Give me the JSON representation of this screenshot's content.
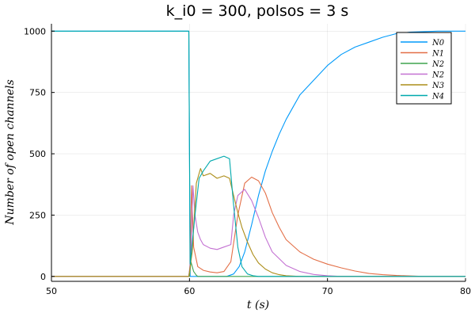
{
  "chart_data": {
    "type": "line",
    "title": "k_i0 = 300, polsos = 3 s",
    "xlabel": "t (s)",
    "ylabel": "Number of open channels",
    "xlim": [
      50,
      80
    ],
    "ylim": [
      -20,
      1030
    ],
    "x_ticks": [
      50,
      60,
      70,
      80
    ],
    "y_ticks": [
      0,
      250,
      500,
      750,
      1000
    ],
    "grid": true,
    "legend_position": "top-right",
    "colors": [
      "#009AFA",
      "#E36F47",
      "#3EA44E",
      "#C371D2",
      "#AC8D18",
      "#00A9AD"
    ],
    "series": [
      {
        "name": "N0",
        "color": "#009AFA",
        "x": [
          50,
          59.95,
          60.05,
          60.5,
          61,
          62,
          62.7,
          63.2,
          63.6,
          64.0,
          64.5,
          65,
          65.5,
          66,
          66.5,
          67,
          67.5,
          68,
          69,
          70,
          71,
          72,
          73,
          74,
          75,
          76,
          77,
          78,
          80
        ],
        "y": [
          1000,
          1000,
          0,
          0,
          0,
          0,
          0,
          10,
          40,
          100,
          210,
          330,
          430,
          510,
          580,
          640,
          690,
          740,
          800,
          860,
          905,
          935,
          955,
          975,
          990,
          996,
          998,
          1000,
          1000
        ]
      },
      {
        "name": "N1",
        "color": "#E36F47",
        "x": [
          50,
          59.95,
          60.05,
          60.15,
          60.3,
          60.6,
          61,
          61.5,
          62,
          62.5,
          63,
          63.5,
          64,
          64.5,
          65,
          65.5,
          66,
          66.5,
          67,
          68,
          69,
          70,
          71,
          72,
          73,
          74,
          75,
          76,
          77,
          80
        ],
        "y": [
          0,
          0,
          40,
          370,
          120,
          40,
          25,
          18,
          15,
          20,
          60,
          250,
          380,
          405,
          390,
          340,
          260,
          200,
          150,
          100,
          70,
          50,
          35,
          22,
          12,
          7,
          4,
          2,
          0,
          0
        ]
      },
      {
        "name": "N2",
        "color": "#3EA44E",
        "x": [
          50,
          60.0,
          60.1,
          60.3,
          60.5,
          60.6,
          61,
          80
        ],
        "y": [
          0,
          0,
          60,
          20,
          5,
          0,
          0,
          0
        ]
      },
      {
        "name": "N2",
        "color": "#C371D2",
        "x": [
          50,
          59.95,
          60.1,
          60.25,
          60.4,
          60.6,
          60.8,
          61,
          61.5,
          62,
          62.5,
          63.0,
          63.2,
          63.5,
          64,
          64.5,
          65,
          65.5,
          66,
          67,
          68,
          69,
          70,
          71,
          80
        ],
        "y": [
          0,
          0,
          80,
          370,
          250,
          180,
          150,
          130,
          115,
          110,
          120,
          130,
          250,
          330,
          355,
          310,
          240,
          160,
          100,
          45,
          20,
          8,
          3,
          0,
          0
        ]
      },
      {
        "name": "N3",
        "color": "#AC8D18",
        "x": [
          50,
          59.95,
          60.2,
          60.5,
          60.8,
          61,
          61.5,
          62,
          62.5,
          62.9,
          63.2,
          63.5,
          63.8,
          64.2,
          64.6,
          65,
          65.5,
          66,
          66.5,
          67,
          68,
          80
        ],
        "y": [
          0,
          0,
          100,
          380,
          440,
          410,
          420,
          400,
          410,
          400,
          330,
          260,
          200,
          140,
          90,
          55,
          30,
          15,
          7,
          3,
          0,
          0
        ]
      },
      {
        "name": "N4",
        "color": "#00A9AD",
        "x": [
          50,
          59.95,
          60.05,
          60.4,
          60.7,
          61,
          61.5,
          62,
          62.5,
          62.9,
          63.2,
          63.5,
          63.8,
          64.2,
          64.6,
          65,
          80
        ],
        "y": [
          1000,
          1000,
          50,
          250,
          400,
          430,
          470,
          480,
          490,
          480,
          290,
          120,
          40,
          10,
          3,
          0,
          0
        ]
      }
    ]
  }
}
